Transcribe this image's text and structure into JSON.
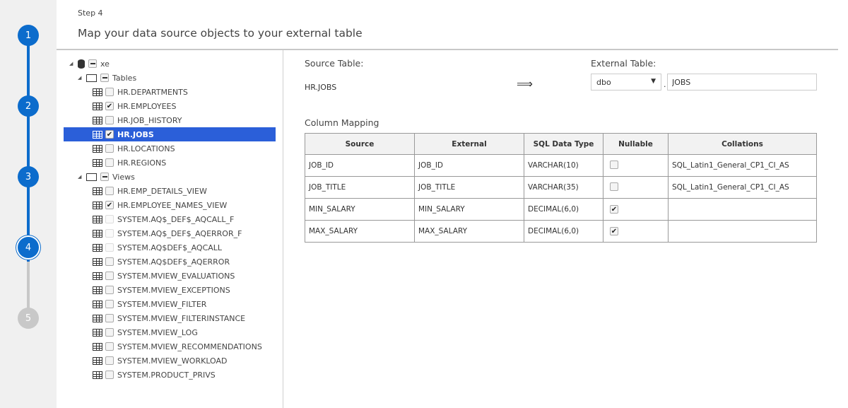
{
  "stepper": {
    "steps": [
      {
        "n": "1",
        "state": "done"
      },
      {
        "n": "2",
        "state": "done"
      },
      {
        "n": "3",
        "state": "done"
      },
      {
        "n": "4",
        "state": "current"
      },
      {
        "n": "5",
        "state": "pending"
      }
    ]
  },
  "header": {
    "step": "Step 4",
    "title": "Map your data source objects to your external table"
  },
  "tree": {
    "root": "xe",
    "tables_label": "Tables",
    "tables": [
      {
        "name": "HR.DEPARTMENTS",
        "checked": false
      },
      {
        "name": "HR.EMPLOYEES",
        "checked": true
      },
      {
        "name": "HR.JOB_HISTORY",
        "checked": false
      },
      {
        "name": "HR.JOBS",
        "checked": true,
        "selected": true
      },
      {
        "name": "HR.LOCATIONS",
        "checked": false
      },
      {
        "name": "HR.REGIONS",
        "checked": false
      }
    ],
    "views_label": "Views",
    "views": [
      {
        "name": "HR.EMP_DETAILS_VIEW",
        "checked": false
      },
      {
        "name": "HR.EMPLOYEE_NAMES_VIEW",
        "checked": true
      },
      {
        "name": "SYSTEM.AQ$_DEF$_AQCALL_F",
        "checked": false,
        "disabled": true
      },
      {
        "name": "SYSTEM.AQ$_DEF$_AQERROR_F",
        "checked": false,
        "disabled": true
      },
      {
        "name": "SYSTEM.AQ$DEF$_AQCALL",
        "checked": false,
        "disabled": true
      },
      {
        "name": "SYSTEM.AQ$DEF$_AQERROR",
        "checked": false
      },
      {
        "name": "SYSTEM.MVIEW_EVALUATIONS",
        "checked": false
      },
      {
        "name": "SYSTEM.MVIEW_EXCEPTIONS",
        "checked": false
      },
      {
        "name": "SYSTEM.MVIEW_FILTER",
        "checked": false
      },
      {
        "name": "SYSTEM.MVIEW_FILTERINSTANCE",
        "checked": false
      },
      {
        "name": "SYSTEM.MVIEW_LOG",
        "checked": false
      },
      {
        "name": "SYSTEM.MVIEW_RECOMMENDATIONS",
        "checked": false
      },
      {
        "name": "SYSTEM.MVIEW_WORKLOAD",
        "checked": false
      },
      {
        "name": "SYSTEM.PRODUCT_PRIVS",
        "checked": false
      }
    ]
  },
  "mapping": {
    "source_label": "Source Table:",
    "source_value": "HR.JOBS",
    "external_label": "External Table:",
    "schema": "dbo",
    "separator": ".",
    "external_name": "JOBS",
    "section": "Column Mapping",
    "columns": [
      "Source",
      "External",
      "SQL Data Type",
      "Nullable",
      "Collations"
    ],
    "rows": [
      {
        "source": "JOB_ID",
        "external": "JOB_ID",
        "type": "VARCHAR(10)",
        "nullable": false,
        "collation": "SQL_Latin1_General_CP1_CI_AS"
      },
      {
        "source": "JOB_TITLE",
        "external": "JOB_TITLE",
        "type": "VARCHAR(35)",
        "nullable": false,
        "collation": "SQL_Latin1_General_CP1_CI_AS"
      },
      {
        "source": "MIN_SALARY",
        "external": "MIN_SALARY",
        "type": "DECIMAL(6,0)",
        "nullable": true,
        "collation": ""
      },
      {
        "source": "MAX_SALARY",
        "external": "MAX_SALARY",
        "type": "DECIMAL(6,0)",
        "nullable": true,
        "collation": ""
      }
    ]
  },
  "colors": {
    "accent": "#0c6ccc",
    "selection": "#2b5fd9",
    "pending": "#c8c8c8"
  }
}
